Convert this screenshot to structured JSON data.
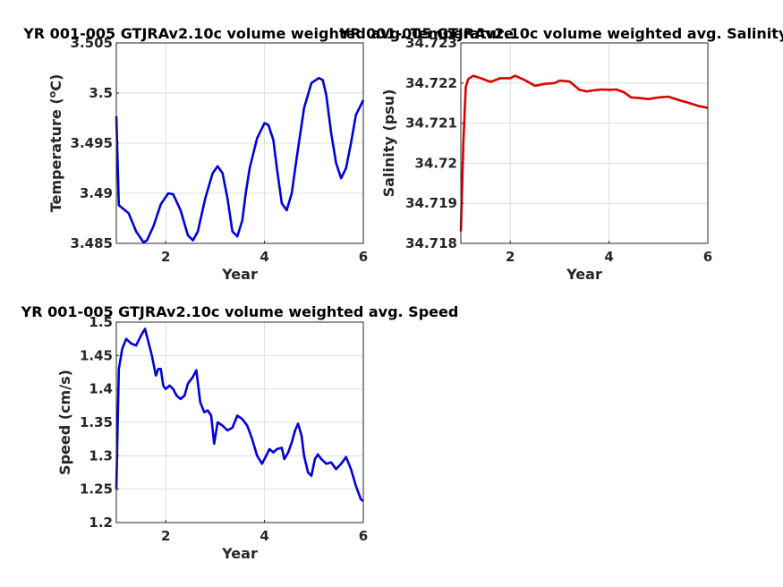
{
  "chart_data": [
    {
      "type": "line",
      "title": "YR 001-005 GTJRAv2.10c volume weighted avg. Temperature",
      "xlabel": "Year",
      "ylabel": "Temperature (°C)",
      "ylabel_main": "Temperature (",
      "ylabel_sup": "o",
      "ylabel_tail": "C)",
      "xlim": [
        1,
        6
      ],
      "ylim": [
        3.485,
        3.505
      ],
      "xticks": [
        2,
        4,
        6
      ],
      "yticks": [
        "3.485",
        "3.49",
        "3.495",
        "3.5",
        "3.505"
      ],
      "grid": true,
      "color": "#0000dd",
      "series": [
        {
          "x": [
            1.0,
            1.05,
            1.25,
            1.4,
            1.55,
            1.62,
            1.75,
            1.9,
            2.05,
            2.15,
            2.3,
            2.45,
            2.55,
            2.65,
            2.8,
            2.95,
            3.05,
            3.15,
            3.25,
            3.35,
            3.45,
            3.55,
            3.62,
            3.7,
            3.85,
            4.0,
            4.08,
            4.18,
            4.25,
            4.35,
            4.45,
            4.55,
            4.65,
            4.8,
            4.95,
            5.1,
            5.18,
            5.25,
            5.35,
            5.45,
            5.55,
            5.65,
            5.75,
            5.85,
            6.0
          ],
          "y": [
            3.4977,
            3.4888,
            3.488,
            3.4862,
            3.4851,
            3.4853,
            3.4867,
            3.4889,
            3.49,
            3.4899,
            3.4883,
            3.4858,
            3.4853,
            3.4862,
            3.4895,
            3.492,
            3.4927,
            3.492,
            3.4895,
            3.4862,
            3.4857,
            3.4873,
            3.49,
            3.4925,
            3.4955,
            3.497,
            3.4968,
            3.4953,
            3.4925,
            3.489,
            3.4883,
            3.49,
            3.4935,
            3.4985,
            3.501,
            3.5015,
            3.5013,
            3.4998,
            3.496,
            3.493,
            3.4915,
            3.4925,
            3.495,
            3.4978,
            3.4993
          ]
        }
      ]
    },
    {
      "type": "line",
      "title": "YR 001-005 GTJRAv2.10c volume weighted avg. Salinity",
      "xlabel": "Year",
      "ylabel": "Salinity (psu)",
      "xlim": [
        1,
        6
      ],
      "ylim": [
        34.718,
        34.723
      ],
      "xticks": [
        2,
        4,
        6
      ],
      "yticks": [
        "34.718",
        "34.719",
        "34.72",
        "34.721",
        "34.722",
        "34.723"
      ],
      "grid": true,
      "color": "#dd0000",
      "series": [
        {
          "x": [
            1.0,
            1.05,
            1.1,
            1.15,
            1.25,
            1.4,
            1.6,
            1.8,
            2.0,
            2.1,
            2.3,
            2.5,
            2.7,
            2.9,
            3.0,
            3.1,
            3.2,
            3.4,
            3.55,
            3.7,
            3.85,
            4.0,
            4.15,
            4.3,
            4.45,
            4.6,
            4.8,
            5.0,
            5.2,
            5.4,
            5.6,
            5.8,
            6.0
          ],
          "y": [
            34.7183,
            34.7205,
            34.7219,
            34.7221,
            34.72218,
            34.72212,
            34.72203,
            34.72212,
            34.72212,
            34.72218,
            34.72207,
            34.72193,
            34.72198,
            34.722,
            34.72206,
            34.72205,
            34.72204,
            34.72183,
            34.72179,
            34.72182,
            34.72184,
            34.72183,
            34.72184,
            34.72177,
            34.72164,
            34.72163,
            34.7216,
            34.72164,
            34.72166,
            34.72158,
            34.72151,
            34.72143,
            34.72138
          ]
        }
      ]
    },
    {
      "type": "line",
      "title": "YR 001-005 GTJRAv2.10c volume weighted avg. Speed",
      "xlabel": "Year",
      "ylabel": "Speed (cm/s)",
      "xlim": [
        1,
        6
      ],
      "ylim": [
        1.2,
        1.5
      ],
      "xticks": [
        2,
        4,
        6
      ],
      "yticks": [
        "1.2",
        "1.25",
        "1.3",
        "1.35",
        "1.4",
        "1.45",
        "1.5"
      ],
      "grid": true,
      "color": "#0000dd",
      "series": [
        {
          "x": [
            1.0,
            1.05,
            1.12,
            1.2,
            1.3,
            1.4,
            1.5,
            1.58,
            1.65,
            1.72,
            1.8,
            1.85,
            1.9,
            1.95,
            2.0,
            2.08,
            2.15,
            2.22,
            2.3,
            2.38,
            2.45,
            2.55,
            2.62,
            2.7,
            2.78,
            2.85,
            2.92,
            2.98,
            3.05,
            3.15,
            3.25,
            3.35,
            3.45,
            3.55,
            3.65,
            3.75,
            3.85,
            3.95,
            4.02,
            4.1,
            4.18,
            4.25,
            4.35,
            4.4,
            4.48,
            4.55,
            4.62,
            4.68,
            4.75,
            4.8,
            4.88,
            4.95,
            5.02,
            5.08,
            5.15,
            5.25,
            5.35,
            5.45,
            5.55,
            5.65,
            5.75,
            5.85,
            5.95,
            6.0
          ],
          "y": [
            1.25,
            1.43,
            1.46,
            1.475,
            1.468,
            1.465,
            1.48,
            1.49,
            1.47,
            1.45,
            1.42,
            1.43,
            1.43,
            1.405,
            1.4,
            1.405,
            1.4,
            1.39,
            1.385,
            1.39,
            1.408,
            1.418,
            1.428,
            1.38,
            1.365,
            1.368,
            1.36,
            1.318,
            1.35,
            1.345,
            1.338,
            1.342,
            1.36,
            1.355,
            1.345,
            1.325,
            1.3,
            1.288,
            1.298,
            1.31,
            1.305,
            1.31,
            1.312,
            1.295,
            1.305,
            1.32,
            1.338,
            1.348,
            1.33,
            1.3,
            1.275,
            1.27,
            1.295,
            1.302,
            1.295,
            1.288,
            1.29,
            1.28,
            1.288,
            1.298,
            1.28,
            1.255,
            1.235,
            1.232
          ]
        }
      ]
    }
  ]
}
